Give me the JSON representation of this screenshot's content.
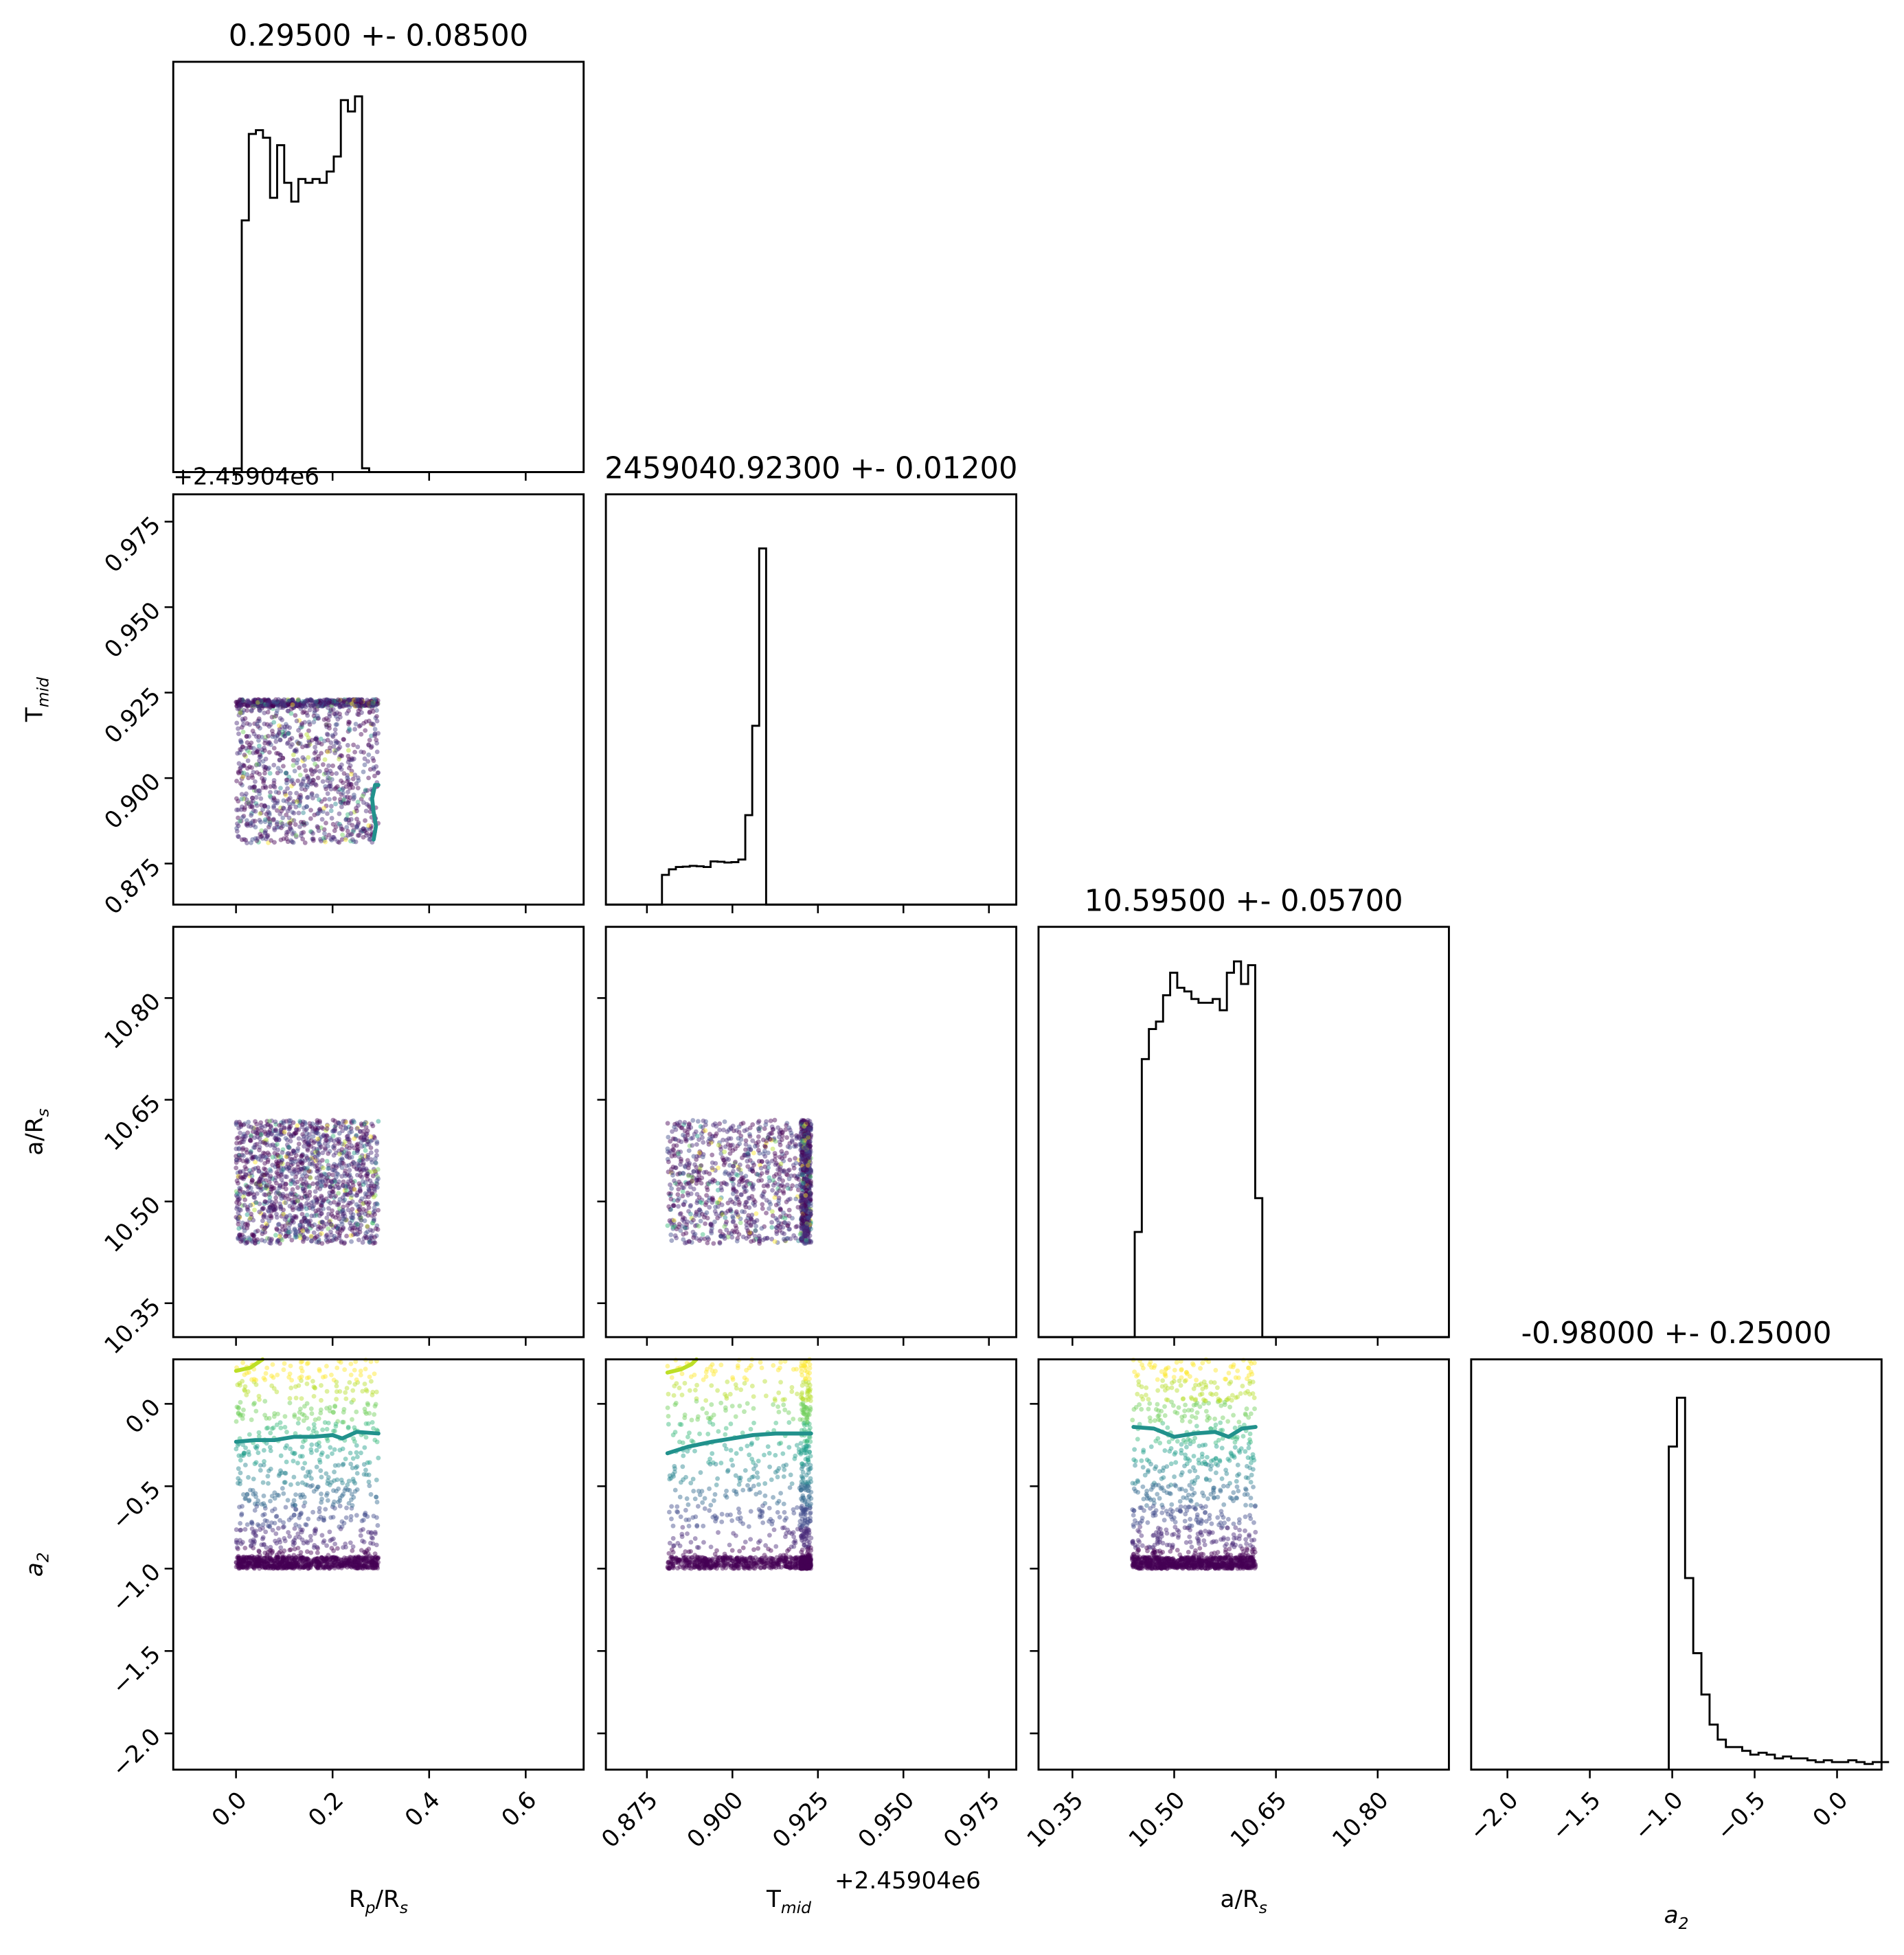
{
  "chart_data": {
    "type": "corner",
    "parameters": [
      {
        "key": "rp",
        "label": "R",
        "label_sub": "p",
        "label_tail": "/R",
        "label_tail_sub": "s",
        "range": [
          -0.13,
          0.72
        ],
        "ticks": [
          0.0,
          0.2,
          0.4,
          0.6
        ],
        "tick_labels": [
          "0.0",
          "0.2",
          "0.4",
          "0.6"
        ]
      },
      {
        "key": "tmid",
        "label": "T",
        "label_sub": "mid",
        "label_tail": "",
        "label_tail_sub": "",
        "range": [
          0.863,
          0.983
        ],
        "ticks": [
          0.875,
          0.9,
          0.925,
          0.95,
          0.975
        ],
        "tick_labels": [
          "0.875",
          "0.900",
          "0.925",
          "0.950",
          "0.975"
        ],
        "offset_label": "+2.45904e6"
      },
      {
        "key": "ars",
        "label": "a/R",
        "label_sub": "s",
        "label_tail": "",
        "label_tail_sub": "",
        "range": [
          10.3,
          10.905
        ],
        "ticks": [
          10.35,
          10.5,
          10.65,
          10.8
        ],
        "tick_labels": [
          "10.35",
          "10.50",
          "10.65",
          "10.80"
        ]
      },
      {
        "key": "a2",
        "label": "a",
        "label_sub": "2",
        "label_tail": "",
        "label_tail_sub": "",
        "label_italic": true,
        "range": [
          -2.22,
          0.27
        ],
        "ticks": [
          -2.0,
          -1.5,
          -1.0,
          -0.5,
          0.0
        ],
        "tick_labels": [
          "−2.0",
          "−1.5",
          "−1.0",
          "−0.5",
          "0.0"
        ]
      }
    ],
    "titles": [
      "0.29500 +- 0.08500",
      "2459040.92300 +- 0.01200",
      "10.59500 +- 0.05700",
      "-0.98000 +- 0.25000"
    ],
    "histograms": [
      {
        "param": "rp",
        "bin_width": 0.01466,
        "start": -0.0028,
        "counts": [
          0,
          0.67,
          0.9,
          0.91,
          0.89,
          0.73,
          0.87,
          0.77,
          0.72,
          0.78,
          0.77,
          0.78,
          0.77,
          0.8,
          0.84,
          0.99,
          0.96,
          1.0,
          0.01,
          0
        ]
      },
      {
        "param": "tmid",
        "bin_width": 0.00203,
        "start": 0.8794,
        "counts": [
          0.079,
          0.094,
          0.1,
          0.101,
          0.103,
          0.102,
          0.1,
          0.115,
          0.114,
          0.112,
          0.113,
          0.12,
          0.238,
          0.476,
          0.948,
          0
        ]
      },
      {
        "param": "ars",
        "bin_width": 0.01045,
        "start": 10.4418,
        "counts": [
          0.28,
          0.74,
          0.82,
          0.84,
          0.91,
          0.97,
          0.93,
          0.92,
          0.9,
          0.89,
          0.89,
          0.9,
          0.87,
          0.97,
          1.0,
          0.94,
          0.99,
          0.37,
          0
        ]
      },
      {
        "param": "a2",
        "bin_width": 0.0495,
        "start": -1.021,
        "counts": [
          0.86,
          0.99,
          0.51,
          0.31,
          0.2,
          0.12,
          0.08,
          0.06,
          0.06,
          0.05,
          0.04,
          0.045,
          0.04,
          0.03,
          0.035,
          0.03,
          0.03,
          0.025,
          0.02,
          0.025,
          0.02,
          0.02,
          0.025,
          0.02,
          0.015,
          0.02,
          0.02
        ]
      }
    ],
    "hist_ymax": [
      1.0,
      1.0,
      1.0,
      1.0
    ],
    "sample_bounds": {
      "rp": [
        0.0,
        0.295
      ],
      "tmid": [
        0.881,
        0.923
      ],
      "ars": [
        10.438,
        10.62
      ],
      "a2": [
        -1.0,
        0.27
      ]
    },
    "contours": [
      {
        "x": "rp",
        "y": "tmid",
        "color": "#21918c",
        "points": [
          [
            0.285,
            0.882
          ],
          [
            0.29,
            0.886
          ],
          [
            0.285,
            0.89
          ],
          [
            0.282,
            0.894
          ],
          [
            0.288,
            0.898
          ],
          [
            0.295,
            0.898
          ]
        ]
      },
      {
        "x": "rp",
        "y": "a2",
        "color": "#21918c",
        "points": [
          [
            0.0,
            -0.23
          ],
          [
            0.04,
            -0.22
          ],
          [
            0.08,
            -0.22
          ],
          [
            0.12,
            -0.2
          ],
          [
            0.16,
            -0.2
          ],
          [
            0.2,
            -0.19
          ],
          [
            0.22,
            -0.21
          ],
          [
            0.25,
            -0.17
          ],
          [
            0.295,
            -0.18
          ]
        ]
      },
      {
        "x": "rp",
        "y": "a2",
        "color": "#bddf26",
        "points": [
          [
            0.0,
            0.2
          ],
          [
            0.03,
            0.22
          ],
          [
            0.055,
            0.27
          ]
        ]
      },
      {
        "x": "tmid",
        "y": "a2",
        "color": "#21918c",
        "points": [
          [
            0.881,
            -0.3
          ],
          [
            0.887,
            -0.26
          ],
          [
            0.894,
            -0.23
          ],
          [
            0.9,
            -0.21
          ],
          [
            0.906,
            -0.19
          ],
          [
            0.913,
            -0.18
          ],
          [
            0.923,
            -0.18
          ]
        ]
      },
      {
        "x": "tmid",
        "y": "a2",
        "color": "#bddf26",
        "points": [
          [
            0.881,
            0.19
          ],
          [
            0.885,
            0.21
          ],
          [
            0.888,
            0.24
          ],
          [
            0.8895,
            0.27
          ]
        ]
      },
      {
        "x": "ars",
        "y": "a2",
        "color": "#21918c",
        "points": [
          [
            10.44,
            -0.14
          ],
          [
            10.47,
            -0.15
          ],
          [
            10.5,
            -0.2
          ],
          [
            10.53,
            -0.18
          ],
          [
            10.56,
            -0.17
          ],
          [
            10.58,
            -0.2
          ],
          [
            10.6,
            -0.15
          ],
          [
            10.62,
            -0.14
          ]
        ]
      }
    ],
    "colormap": [
      "#440154",
      "#482878",
      "#3e4989",
      "#31688e",
      "#26828e",
      "#1f9e89",
      "#35b779",
      "#6ece58",
      "#b5de2b",
      "#fde725"
    ]
  }
}
